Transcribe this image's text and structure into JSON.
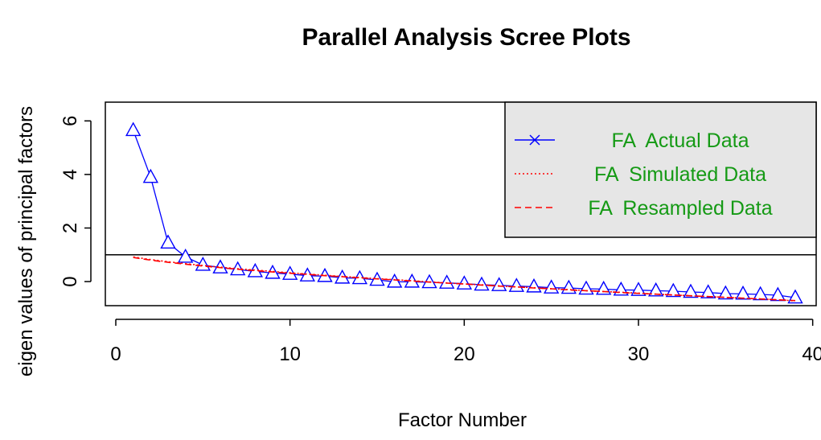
{
  "chart_data": {
    "type": "line",
    "title": "Parallel Analysis Scree Plots",
    "xlabel": "Factor Number",
    "ylabel": "eigen values of principal factors",
    "xlim": [
      -0.6,
      40.2
    ],
    "ylim": [
      -0.9,
      6.7
    ],
    "x_ticks": [
      0,
      10,
      20,
      30,
      40
    ],
    "y_ticks": [
      0,
      2,
      4,
      6
    ],
    "reference_line": 1,
    "legend_position": "top-right",
    "legend_background": "#e6e6e6",
    "series": [
      {
        "name": "FA  Actual Data",
        "color": "#0000ff",
        "marker": "triangle",
        "line_style": "solid",
        "legend_symbol": "x",
        "label_color": "#159a15",
        "x": [
          1,
          2,
          3,
          4,
          5,
          6,
          7,
          8,
          9,
          10,
          11,
          12,
          13,
          14,
          15,
          16,
          17,
          18,
          19,
          20,
          21,
          22,
          23,
          24,
          25,
          26,
          27,
          28,
          29,
          30,
          31,
          32,
          33,
          34,
          35,
          36,
          37,
          38,
          39
        ],
        "values": [
          5.65,
          3.9,
          1.45,
          0.92,
          0.62,
          0.52,
          0.45,
          0.38,
          0.32,
          0.28,
          0.22,
          0.2,
          0.14,
          0.12,
          0.06,
          -0.01,
          -0.01,
          -0.03,
          -0.05,
          -0.08,
          -0.12,
          -0.14,
          -0.17,
          -0.19,
          -0.23,
          -0.24,
          -0.27,
          -0.28,
          -0.31,
          -0.32,
          -0.34,
          -0.36,
          -0.39,
          -0.41,
          -0.45,
          -0.46,
          -0.48,
          -0.51,
          -0.6
        ]
      },
      {
        "name": "FA  Simulated Data",
        "color": "#ff0000",
        "line_style": "dotted",
        "label_color": "#159a15",
        "x": [
          1,
          2,
          3,
          4,
          5,
          6,
          7,
          8,
          9,
          10,
          11,
          12,
          13,
          14,
          15,
          16,
          17,
          18,
          19,
          20,
          21,
          22,
          23,
          24,
          25,
          26,
          27,
          28,
          29,
          30,
          31,
          32,
          33,
          34,
          35,
          36,
          37,
          38,
          39
        ],
        "values": [
          0.92,
          0.82,
          0.74,
          0.67,
          0.6,
          0.54,
          0.48,
          0.43,
          0.38,
          0.33,
          0.28,
          0.24,
          0.19,
          0.15,
          0.11,
          0.07,
          0.03,
          -0.01,
          -0.05,
          -0.09,
          -0.12,
          -0.16,
          -0.2,
          -0.23,
          -0.27,
          -0.3,
          -0.34,
          -0.37,
          -0.4,
          -0.43,
          -0.47,
          -0.5,
          -0.53,
          -0.56,
          -0.59,
          -0.62,
          -0.65,
          -0.68,
          -0.72
        ]
      },
      {
        "name": "FA  Resampled Data",
        "color": "#ff0000",
        "line_style": "dashed",
        "label_color": "#159a15",
        "x": [
          1,
          2,
          3,
          4,
          5,
          6,
          7,
          8,
          9,
          10,
          11,
          12,
          13,
          14,
          15,
          16,
          17,
          18,
          19,
          20,
          21,
          22,
          23,
          24,
          25,
          26,
          27,
          28,
          29,
          30,
          31,
          32,
          33,
          34,
          35,
          36,
          37,
          38,
          39
        ],
        "values": [
          0.9,
          0.8,
          0.72,
          0.65,
          0.58,
          0.52,
          0.46,
          0.41,
          0.36,
          0.31,
          0.27,
          0.22,
          0.18,
          0.14,
          0.1,
          0.06,
          0.02,
          -0.02,
          -0.06,
          -0.09,
          -0.13,
          -0.17,
          -0.2,
          -0.24,
          -0.27,
          -0.31,
          -0.34,
          -0.37,
          -0.41,
          -0.44,
          -0.47,
          -0.5,
          -0.53,
          -0.56,
          -0.59,
          -0.62,
          -0.65,
          -0.68,
          -0.71
        ]
      }
    ]
  }
}
